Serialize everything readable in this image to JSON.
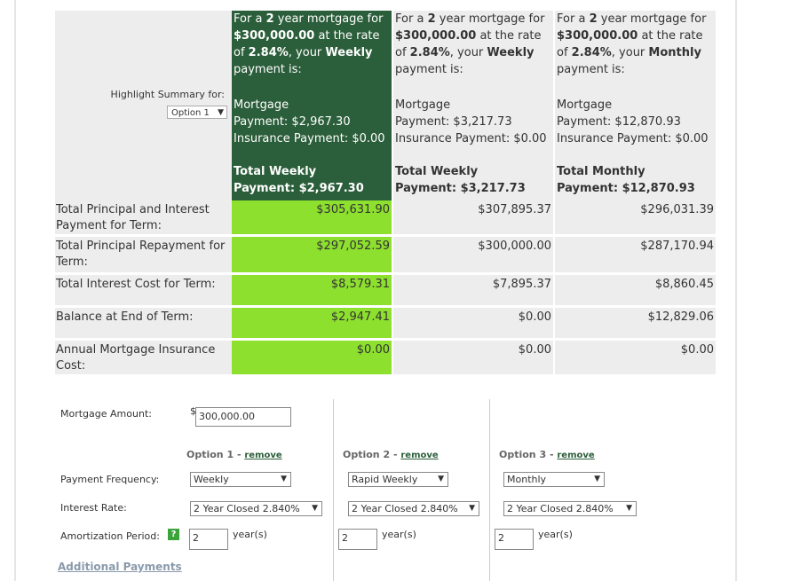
{
  "summary": {
    "highlight_label": "Highlight Summary for:",
    "highlight_select": "Option 1",
    "options": [
      {
        "head_pre": "For a",
        "years": "2",
        "head_mid": "year mortgage for",
        "amount": "$300,000.00",
        "head_rate": "at the rate of",
        "rate": "2.84%",
        "head_your": ", your",
        "freq": "Weekly",
        "head_post": "payment is:",
        "mortgage_label": "Mortgage",
        "mortgage_payment": "Payment: $2,967.30",
        "insurance": "Insurance Payment: $0.00",
        "total_label": "Total Weekly",
        "total_payment": "Payment: $2,967.30"
      },
      {
        "head_pre": "For a",
        "years": "2",
        "head_mid": "year mortgage for",
        "amount": "$300,000.00",
        "head_rate": "at the rate of",
        "rate": "2.84%",
        "head_your": ", your",
        "freq": "Weekly",
        "head_post": "payment is:",
        "mortgage_label": "Mortgage",
        "mortgage_payment": "Payment: $3,217.73",
        "insurance": "Insurance Payment: $0.00",
        "total_label": "Total Weekly",
        "total_payment": "Payment: $3,217.73"
      },
      {
        "head_pre": "For a",
        "years": "2",
        "head_mid": "year mortgage for",
        "amount": "$300,000.00",
        "head_rate": "at the rate of",
        "rate": "2.84%",
        "head_your": ", your",
        "freq": "Monthly",
        "head_post": "payment is:",
        "mortgage_label": "Mortgage",
        "mortgage_payment": "Payment: $12,870.93",
        "insurance": "Insurance Payment: $0.00",
        "total_label": "Total Monthly",
        "total_payment": "Payment: $12,870.93"
      }
    ],
    "rows": [
      {
        "label": "Total Principal and Interest Payment for Term:",
        "values": [
          "$305,631.90",
          "$307,895.37",
          "$296,031.39"
        ]
      },
      {
        "label": "Total Principal Repayment for Term:",
        "values": [
          "$297,052.59",
          "$300,000.00",
          "$287,170.94"
        ]
      },
      {
        "label": "Total Interest Cost for Term:",
        "values": [
          "$8,579.31",
          "$7,895.37",
          "$8,860.45"
        ]
      },
      {
        "label": "Balance at End of Term:",
        "values": [
          "$2,947.41",
          "$0.00",
          "$12,829.06"
        ]
      },
      {
        "label": "Annual Mortgage Insurance Cost:",
        "values": [
          "$0.00",
          "$0.00",
          "$0.00"
        ]
      }
    ]
  },
  "form": {
    "mortgage_amount_label": "Mortgage Amount:",
    "currency": "$",
    "mortgage_amount": "300,000.00",
    "payment_frequency_label": "Payment Frequency:",
    "interest_rate_label": "Interest Rate:",
    "amortization_label": "Amortization Period:",
    "help": "?",
    "remove": "remove",
    "years_unit": "year(s)",
    "options": [
      {
        "title": "Option 1 -",
        "frequency": "Weekly",
        "rate": "2 Year Closed 2.840%",
        "amortization": "2"
      },
      {
        "title": "Option 2 -",
        "frequency": "Rapid Weekly",
        "rate": "2 Year Closed 2.840%",
        "amortization": "2"
      },
      {
        "title": "Option 3 -",
        "frequency": "Monthly",
        "rate": "2 Year Closed 2.840%",
        "amortization": "2"
      }
    ],
    "additional_payments": "Additional Payments"
  }
}
